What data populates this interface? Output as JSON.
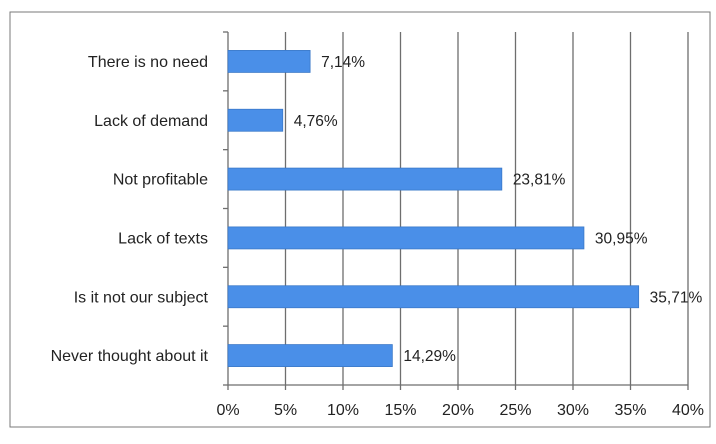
{
  "chart_data": {
    "type": "bar",
    "orientation": "horizontal",
    "categories": [
      "There is no need",
      "Lack of  demand",
      "Not profitable",
      "Lack of  texts",
      "Is it not our subject",
      "Never thought about it"
    ],
    "values": [
      7.14,
      4.76,
      23.81,
      30.95,
      35.71,
      14.29
    ],
    "value_labels": [
      "7,14%",
      "4,76%",
      "23,81%",
      "30,95%",
      "35,71%",
      "14,29%"
    ],
    "x_ticks": [
      0,
      5,
      10,
      15,
      20,
      25,
      30,
      35,
      40
    ],
    "x_tick_labels": [
      "0%",
      "5%",
      "10%",
      "15%",
      "20%",
      "25%",
      "30%",
      "35%",
      "40%"
    ],
    "xlim": [
      0,
      40
    ],
    "grid": true,
    "legend": "none",
    "bar_color": "#4a8fe8",
    "title": "",
    "xlabel": "",
    "ylabel": ""
  }
}
